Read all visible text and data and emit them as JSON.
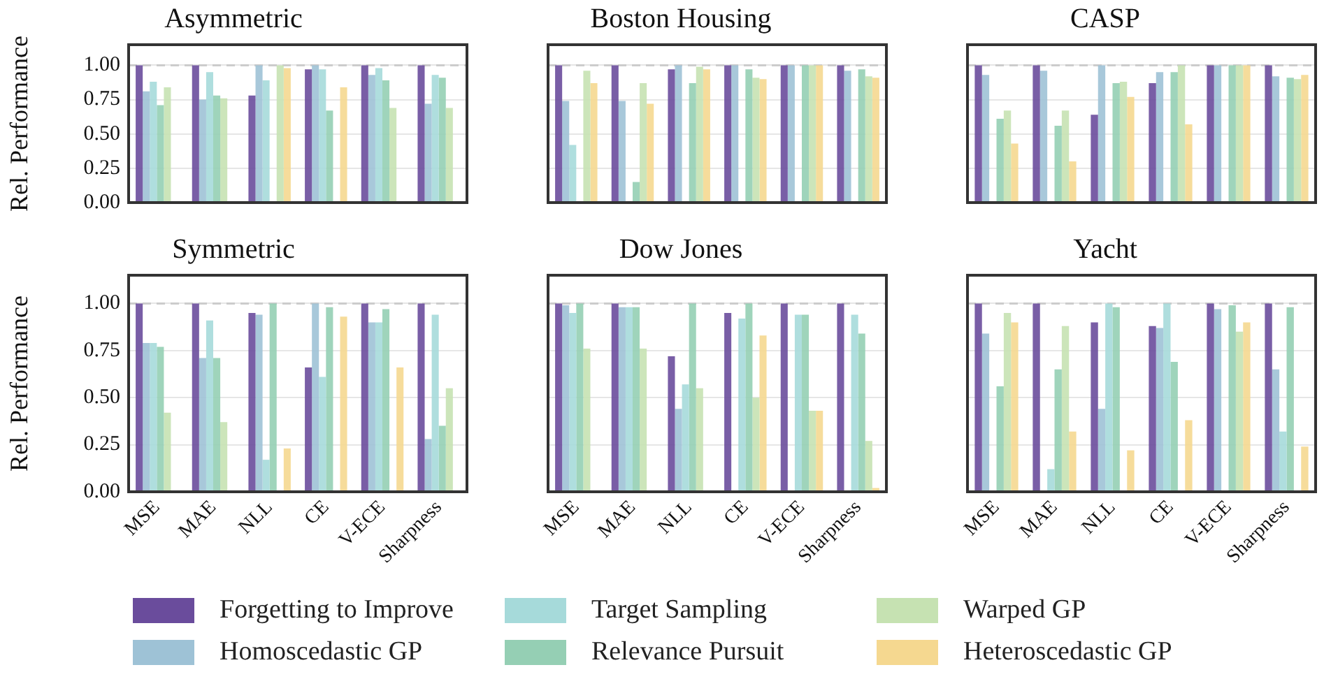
{
  "chart_data": [
    {
      "type": "bar",
      "title": "Asymmetric",
      "ylabel": "Rel. Performance",
      "categories": [
        "MSE",
        "MAE",
        "NLL",
        "CE",
        "V-ECE",
        "Sharpness"
      ],
      "ylim": [
        0,
        1.15
      ],
      "yticks": [
        {
          "value": 0,
          "label": "0.00"
        },
        {
          "value": 0.25,
          "label": "0.25"
        },
        {
          "value": 0.5,
          "label": "0.50"
        },
        {
          "value": 0.75,
          "label": "0.75"
        },
        {
          "value": 1,
          "label": "1.00"
        }
      ],
      "grid": "y",
      "tick_labels": "y",
      "legend": "bottom",
      "ref_lines": [
        {
          "axis": "y",
          "value": 1,
          "color": "#cccccc",
          "line_style": "dashed"
        }
      ],
      "series": [
        {
          "name": "Forgetting to Improve",
          "color": "#6a4c9c",
          "values": [
            1.0,
            1.0,
            0.78,
            0.97,
            1.0,
            1.0
          ]
        },
        {
          "name": "Homoscedastic GP",
          "color": "#9ec2d6",
          "values": [
            0.81,
            0.75,
            1.0,
            1.0,
            0.93,
            0.72
          ]
        },
        {
          "name": "Target Sampling",
          "color": "#a6dada",
          "values": [
            0.88,
            0.95,
            0.89,
            0.97,
            0.98,
            0.93
          ]
        },
        {
          "name": "Relevance Pursuit",
          "color": "#95cfb4",
          "values": [
            0.71,
            0.78,
            null,
            0.67,
            0.89,
            0.91
          ]
        },
        {
          "name": "Warped GP",
          "color": "#c6e2b2",
          "values": [
            0.84,
            0.76,
            1.0,
            null,
            0.69,
            0.69
          ]
        },
        {
          "name": "Heteroscedastic GP",
          "color": "#f5d890",
          "values": [
            null,
            null,
            0.98,
            0.84,
            null,
            null
          ]
        }
      ]
    },
    {
      "type": "bar",
      "title": "Boston Housing",
      "categories": [
        "MSE",
        "MAE",
        "NLL",
        "CE",
        "V-ECE",
        "Sharpness"
      ],
      "ylim": [
        0,
        1.15
      ],
      "yticks": [
        0,
        0.25,
        0.5,
        0.75,
        1
      ],
      "grid": "y",
      "tick_labels": false,
      "ref_lines": [
        {
          "axis": "y",
          "value": 1,
          "color": "#cccccc",
          "line_style": "dashed"
        }
      ],
      "series": [
        {
          "name": "Forgetting to Improve",
          "color": "#6a4c9c",
          "values": [
            1.0,
            1.0,
            0.97,
            1.0,
            1.0,
            1.0
          ]
        },
        {
          "name": "Homoscedastic GP",
          "color": "#9ec2d6",
          "values": [
            0.74,
            0.74,
            1.0,
            1.0,
            1.0,
            0.96
          ]
        },
        {
          "name": "Target Sampling",
          "color": "#a6dada",
          "values": [
            0.42,
            null,
            null,
            null,
            null,
            null
          ]
        },
        {
          "name": "Relevance Pursuit",
          "color": "#95cfb4",
          "values": [
            null,
            0.15,
            0.87,
            0.97,
            1.0,
            0.97
          ]
        },
        {
          "name": "Warped GP",
          "color": "#c6e2b2",
          "values": [
            0.96,
            0.87,
            0.99,
            0.91,
            1.0,
            0.92
          ]
        },
        {
          "name": "Heteroscedastic GP",
          "color": "#f5d890",
          "values": [
            0.87,
            0.72,
            0.97,
            0.9,
            1.0,
            0.91
          ]
        }
      ]
    },
    {
      "type": "bar",
      "title": "CASP",
      "categories": [
        "MSE",
        "MAE",
        "NLL",
        "CE",
        "V-ECE",
        "Sharpness"
      ],
      "ylim": [
        0,
        1.15
      ],
      "yticks": [
        0,
        0.25,
        0.5,
        0.75,
        1
      ],
      "grid": "y",
      "tick_labels": false,
      "ref_lines": [
        {
          "axis": "y",
          "value": 1,
          "color": "#cccccc",
          "line_style": "dashed"
        }
      ],
      "series": [
        {
          "name": "Forgetting to Improve",
          "color": "#6a4c9c",
          "values": [
            1.0,
            1.0,
            0.64,
            0.87,
            1.0,
            1.0
          ]
        },
        {
          "name": "Homoscedastic GP",
          "color": "#9ec2d6",
          "values": [
            0.93,
            0.96,
            1.0,
            0.95,
            1.0,
            0.92
          ]
        },
        {
          "name": "Target Sampling",
          "color": "#a6dada",
          "values": [
            null,
            null,
            null,
            null,
            null,
            null
          ]
        },
        {
          "name": "Relevance Pursuit",
          "color": "#95cfb4",
          "values": [
            0.61,
            0.56,
            0.87,
            0.95,
            1.0,
            0.91
          ]
        },
        {
          "name": "Warped GP",
          "color": "#c6e2b2",
          "values": [
            0.67,
            0.67,
            0.88,
            1.0,
            1.0,
            0.9
          ]
        },
        {
          "name": "Heteroscedastic GP",
          "color": "#f5d890",
          "values": [
            0.43,
            0.3,
            0.77,
            0.57,
            1.0,
            0.93
          ]
        }
      ]
    },
    {
      "type": "bar",
      "title": "Symmetric",
      "ylabel": "Rel. Performance",
      "categories": [
        "MSE",
        "MAE",
        "NLL",
        "CE",
        "V-ECE",
        "Sharpness"
      ],
      "ylim": [
        0,
        1.15
      ],
      "yticks": [
        {
          "value": 0,
          "label": "0.00"
        },
        {
          "value": 0.25,
          "label": "0.25"
        },
        {
          "value": 0.5,
          "label": "0.50"
        },
        {
          "value": 0.75,
          "label": "0.75"
        },
        {
          "value": 1,
          "label": "1.00"
        }
      ],
      "grid": "y",
      "ref_lines": [
        {
          "axis": "y",
          "value": 1,
          "color": "#cccccc",
          "line_style": "dashed"
        }
      ],
      "series": [
        {
          "name": "Forgetting to Improve",
          "color": "#6a4c9c",
          "values": [
            1.0,
            1.0,
            0.95,
            0.66,
            1.0,
            1.0
          ]
        },
        {
          "name": "Homoscedastic GP",
          "color": "#9ec2d6",
          "values": [
            0.79,
            0.71,
            0.94,
            1.0,
            0.9,
            0.28
          ]
        },
        {
          "name": "Target Sampling",
          "color": "#a6dada",
          "values": [
            0.79,
            0.91,
            0.17,
            0.61,
            0.9,
            0.94
          ]
        },
        {
          "name": "Relevance Pursuit",
          "color": "#95cfb4",
          "values": [
            0.77,
            0.71,
            1.0,
            0.98,
            0.97,
            0.35
          ]
        },
        {
          "name": "Warped GP",
          "color": "#c6e2b2",
          "values": [
            0.42,
            0.37,
            null,
            null,
            null,
            0.55
          ]
        },
        {
          "name": "Heteroscedastic GP",
          "color": "#f5d890",
          "values": [
            null,
            null,
            0.23,
            0.93,
            0.66,
            null
          ]
        }
      ]
    },
    {
      "type": "bar",
      "title": "Dow Jones",
      "categories": [
        "MSE",
        "MAE",
        "NLL",
        "CE",
        "V-ECE",
        "Sharpness"
      ],
      "ylim": [
        0,
        1.15
      ],
      "yticks": [
        0,
        0.25,
        0.5,
        0.75,
        1
      ],
      "grid": "y",
      "tick_labels": "x",
      "ref_lines": [
        {
          "axis": "y",
          "value": 1,
          "color": "#cccccc",
          "line_style": "dashed"
        }
      ],
      "series": [
        {
          "name": "Forgetting to Improve",
          "color": "#6a4c9c",
          "values": [
            1.0,
            1.0,
            0.72,
            0.95,
            1.0,
            1.0
          ]
        },
        {
          "name": "Homoscedastic GP",
          "color": "#9ec2d6",
          "values": [
            0.99,
            0.98,
            0.44,
            null,
            null,
            null
          ]
        },
        {
          "name": "Target Sampling",
          "color": "#a6dada",
          "values": [
            0.95,
            0.98,
            0.57,
            0.92,
            0.94,
            0.94
          ]
        },
        {
          "name": "Relevance Pursuit",
          "color": "#95cfb4",
          "values": [
            1.0,
            0.98,
            1.0,
            1.0,
            0.94,
            0.84
          ]
        },
        {
          "name": "Warped GP",
          "color": "#c6e2b2",
          "values": [
            0.76,
            0.76,
            0.55,
            0.5,
            0.43,
            0.27
          ]
        },
        {
          "name": "Heteroscedastic GP",
          "color": "#f5d890",
          "values": [
            null,
            null,
            null,
            0.83,
            0.43,
            0.02
          ]
        }
      ]
    },
    {
      "type": "bar",
      "title": "Yacht",
      "categories": [
        "MSE",
        "MAE",
        "NLL",
        "CE",
        "V-ECE",
        "Sharpness"
      ],
      "ylim": [
        0,
        1.15
      ],
      "yticks": [
        0,
        0.25,
        0.5,
        0.75,
        1
      ],
      "grid": "y",
      "tick_labels": "x",
      "ref_lines": [
        {
          "axis": "y",
          "value": 1,
          "color": "#cccccc",
          "line_style": "dashed"
        }
      ],
      "series": [
        {
          "name": "Forgetting to Improve",
          "color": "#6a4c9c",
          "values": [
            1.0,
            1.0,
            0.9,
            0.88,
            1.0,
            1.0
          ]
        },
        {
          "name": "Homoscedastic GP",
          "color": "#9ec2d6",
          "values": [
            0.84,
            null,
            0.44,
            0.87,
            0.97,
            0.65
          ]
        },
        {
          "name": "Target Sampling",
          "color": "#a6dada",
          "values": [
            null,
            0.12,
            1.0,
            1.0,
            null,
            0.32
          ]
        },
        {
          "name": "Relevance Pursuit",
          "color": "#95cfb4",
          "values": [
            0.56,
            0.65,
            0.98,
            0.69,
            0.99,
            0.98
          ]
        },
        {
          "name": "Warped GP",
          "color": "#c6e2b2",
          "values": [
            0.95,
            0.88,
            null,
            null,
            0.85,
            null
          ]
        },
        {
          "name": "Heteroscedastic GP",
          "color": "#f5d890",
          "values": [
            0.9,
            0.32,
            0.22,
            0.38,
            0.9,
            0.24
          ]
        }
      ]
    }
  ]
}
